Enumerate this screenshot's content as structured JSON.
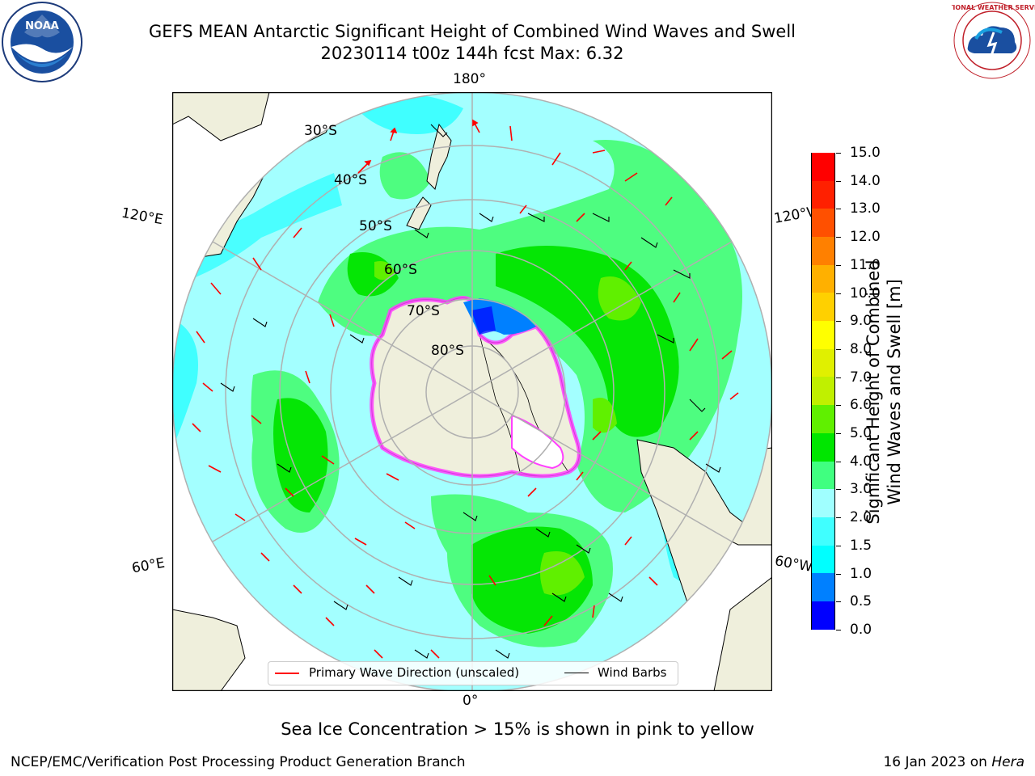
{
  "header": {
    "title_line1": "GEFS MEAN Antarctic Significant Height of Combined Wind Waves and Swell",
    "title_line2": "20230114 t00z 144h fcst   Max: 6.32"
  },
  "logos": {
    "left": {
      "name": "noaa-logo",
      "text": "NOAA"
    },
    "right": {
      "name": "nws-logo",
      "text": "NATIONAL WEATHER SERVICE"
    }
  },
  "map": {
    "projection": "south-polar-stereographic",
    "lon_labels": {
      "top": "180°",
      "bottom": "0°",
      "upper_left": "120°E",
      "upper_right": "120°W",
      "lower_left": "60°E",
      "lower_right": "60°W"
    },
    "lat_labels": [
      "30°S",
      "40°S",
      "50°S",
      "60°S",
      "70°S",
      "80°S"
    ],
    "colors": {
      "land": "#efefdc",
      "ocean_low": "#a3ffff",
      "ocean_mid": "#4efd80",
      "ocean_high": "#05e605",
      "grid": "#b0b0b0",
      "arrow": "#ff0000",
      "ice": "#ff40ff"
    }
  },
  "legend": {
    "items": [
      {
        "label": "Primary Wave Direction (unscaled)",
        "color": "#ff0000"
      },
      {
        "label": "Wind Barbs",
        "color": "#000000"
      }
    ]
  },
  "colorbar": {
    "title_line1": "Significant Height of Combined",
    "title_line2": "Wind Waves and Swell [m]",
    "ticks": [
      "0.0",
      "0.5",
      "1.0",
      "1.5",
      "2.0",
      "3.0",
      "4.0",
      "5.0",
      "6.0",
      "7.0",
      "8.0",
      "9.0",
      "10.0",
      "11.0",
      "12.0",
      "13.0",
      "14.0",
      "15.0"
    ],
    "colors": [
      "#0000ff",
      "#0080ff",
      "#00ffff",
      "#40ffff",
      "#a0ffff",
      "#40ff80",
      "#00e600",
      "#60f000",
      "#c0f000",
      "#e0f000",
      "#ffff00",
      "#ffd000",
      "#ffb000",
      "#ff8000",
      "#ff5000",
      "#ff2000",
      "#ff0000"
    ]
  },
  "footer": {
    "note": "Sea Ice Concentration > 15% is shown in pink to yellow",
    "credit": "NCEP/EMC/Verification Post Processing Product Generation Branch",
    "date": "16 Jan 2023 on ",
    "host": "Hera"
  }
}
